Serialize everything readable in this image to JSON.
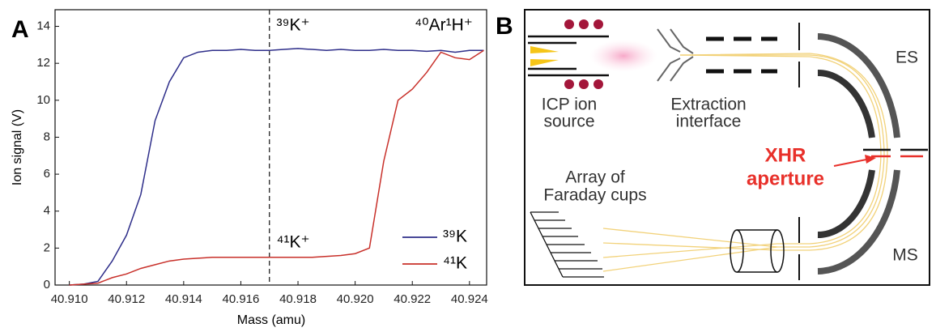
{
  "chart_data": {
    "type": "line",
    "panel_label": "A",
    "xlabel": "Mass (amu)",
    "ylabel": "Ion signal (V)",
    "x": [
      40.91,
      40.9105,
      40.911,
      40.9115,
      40.912,
      40.9125,
      40.913,
      40.9135,
      40.914,
      40.9145,
      40.915,
      40.9155,
      40.916,
      40.9165,
      40.917,
      40.9175,
      40.918,
      40.9185,
      40.919,
      40.9195,
      40.92,
      40.9205,
      40.921,
      40.9215,
      40.922,
      40.9225,
      40.923,
      40.9235,
      40.924,
      40.9245
    ],
    "series": [
      {
        "name": "³⁹K",
        "color": "#2e2e8a",
        "values": [
          0,
          0.05,
          0.2,
          1.3,
          2.7,
          4.9,
          8.9,
          11,
          12.3,
          12.6,
          12.7,
          12.7,
          12.75,
          12.7,
          12.7,
          12.75,
          12.8,
          12.75,
          12.7,
          12.75,
          12.7,
          12.7,
          12.75,
          12.7,
          12.7,
          12.65,
          12.7,
          12.6,
          12.7,
          12.7
        ]
      },
      {
        "name": "⁴¹K",
        "color": "#c8302a",
        "values": [
          0,
          0.05,
          0.1,
          0.4,
          0.6,
          0.9,
          1.1,
          1.3,
          1.4,
          1.45,
          1.5,
          1.5,
          1.5,
          1.5,
          1.5,
          1.5,
          1.5,
          1.5,
          1.55,
          1.6,
          1.7,
          2.0,
          6.7,
          10,
          10.6,
          11.5,
          12.6,
          12.3,
          12.2,
          12.7
        ]
      }
    ],
    "xlim": [
      40.9095,
      40.9246
    ],
    "ylim": [
      0,
      14.9
    ],
    "xticks": [
      {
        "value": 40.91,
        "label": "40.910"
      },
      {
        "value": 40.912,
        "label": "40.912"
      },
      {
        "value": 40.914,
        "label": "40.914"
      },
      {
        "value": 40.916,
        "label": "40.916"
      },
      {
        "value": 40.918,
        "label": "40.918"
      },
      {
        "value": 40.92,
        "label": "40.920"
      },
      {
        "value": 40.922,
        "label": "40.922"
      },
      {
        "value": 40.924,
        "label": "40.924"
      }
    ],
    "yticks": [
      0,
      2,
      4,
      6,
      8,
      10,
      12,
      14
    ],
    "vline": 40.917,
    "annotations": [
      "³⁹K⁺",
      "⁴⁰Ar¹H⁺",
      "⁴¹K⁺"
    ],
    "legend": "lower right",
    "grid": false
  },
  "diagram": {
    "panel_label": "B",
    "labels": {
      "source": [
        "ICP ion",
        "source"
      ],
      "interface": [
        "Extraction",
        "interface"
      ],
      "es": "ES",
      "aperture": [
        "XHR",
        "aperture"
      ],
      "cups": [
        "Array of",
        "Faraday cups"
      ],
      "ms": "MS"
    }
  }
}
